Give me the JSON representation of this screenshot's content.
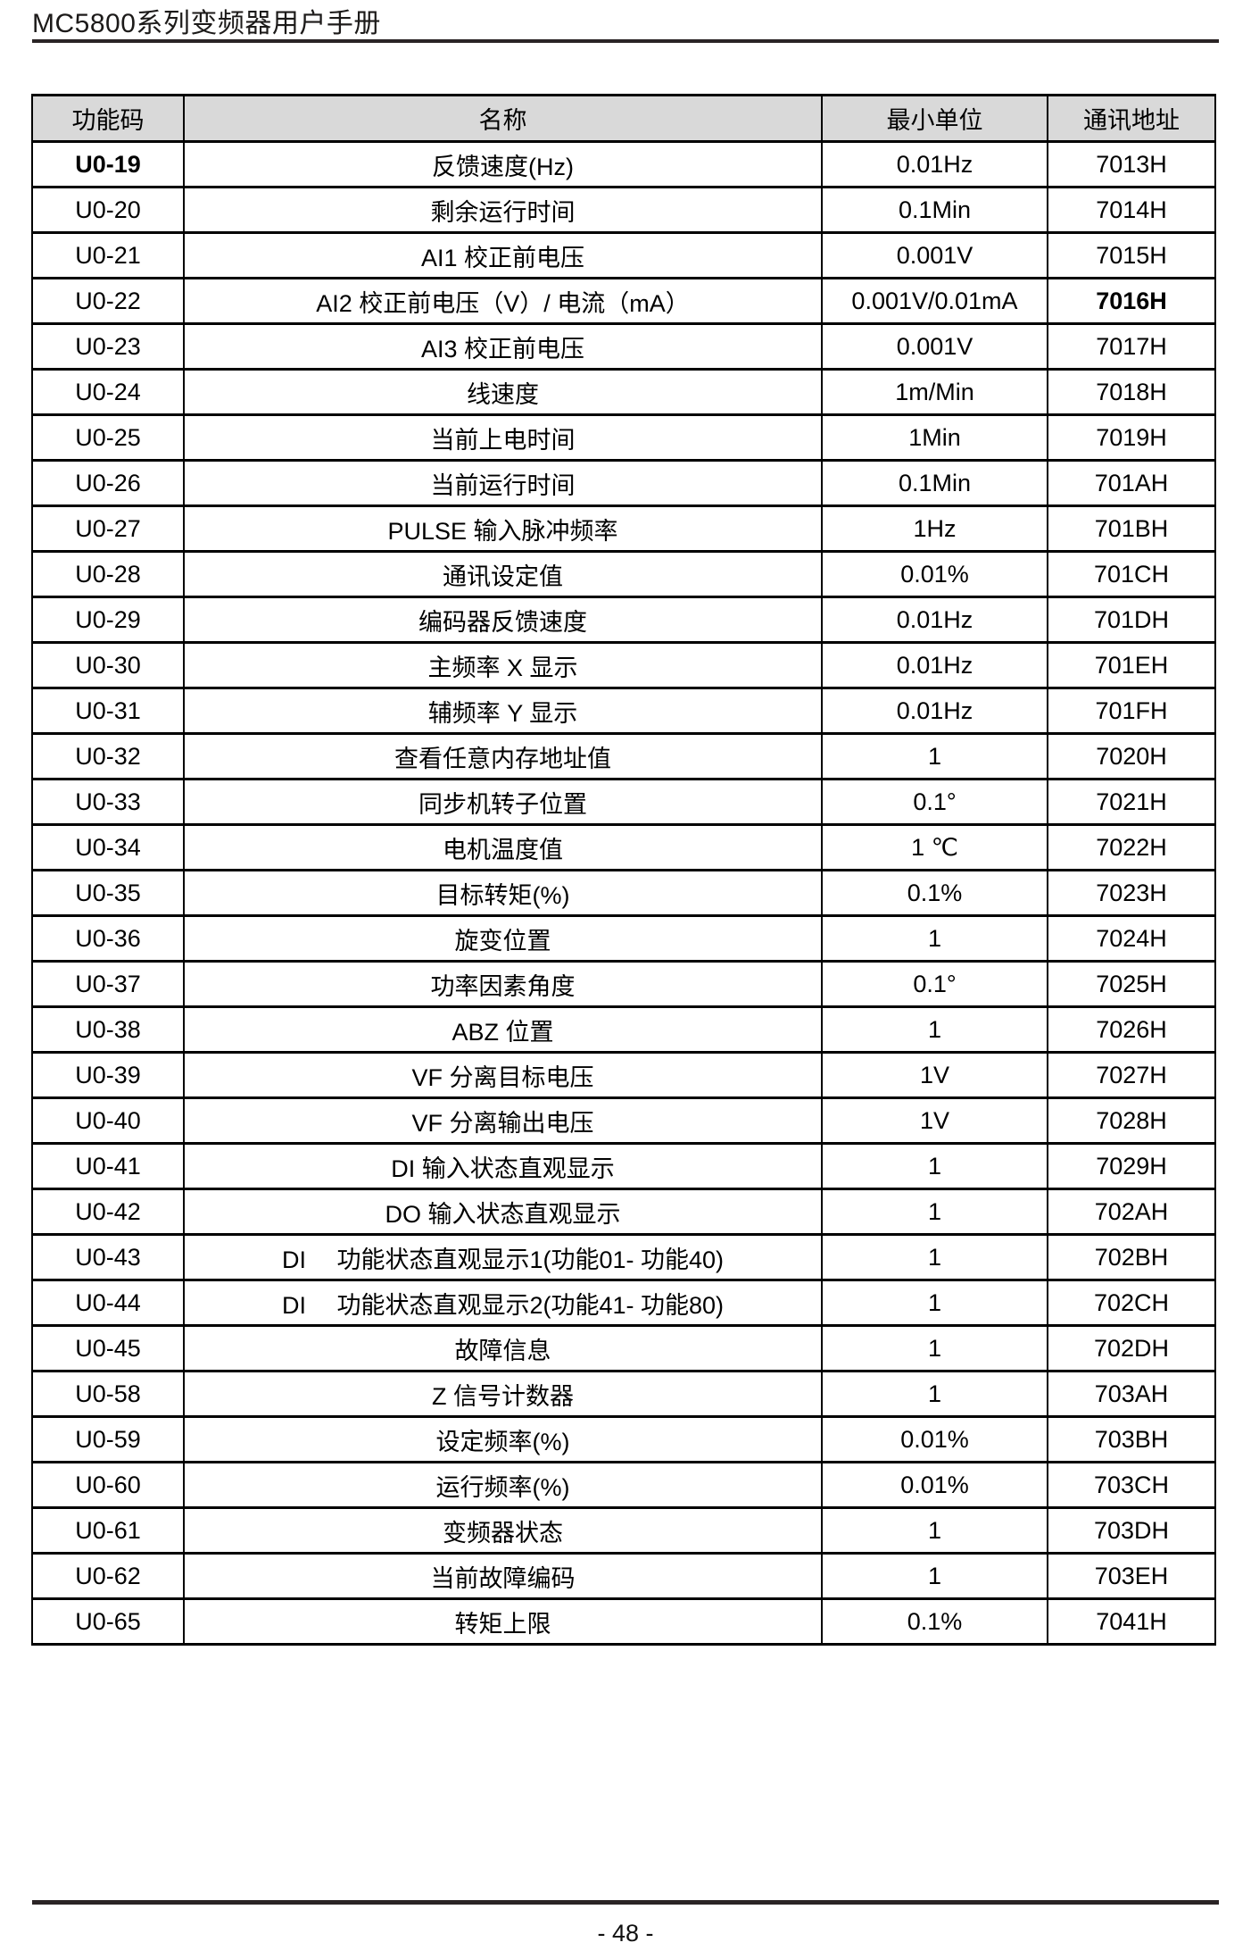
{
  "header": {
    "title": "MC5800系列变频器用户手册"
  },
  "colors": {
    "table_header_bg": "#d9d9d9",
    "rule_color": "#2a2425",
    "border_color": "#000000",
    "text_color": "#000000"
  },
  "table": {
    "columns": [
      "功能码",
      "名称",
      "最小单位",
      "通讯地址"
    ],
    "rows": [
      {
        "code": "U0-19",
        "name": "反馈速度(Hz)",
        "unit": "0.01Hz",
        "addr": "7013H",
        "code_bold": true
      },
      {
        "code": "U0-20",
        "name": "剩余运行时间",
        "unit": "0.1Min",
        "addr": "7014H"
      },
      {
        "code": "U0-21",
        "name": "AI1 校正前电压",
        "unit": "0.001V",
        "addr": "7015H"
      },
      {
        "code": "U0-22",
        "name": "AI2 校正前电压（V）/ 电流（mA）",
        "unit": "0.001V/0.01mA",
        "addr": "7016H",
        "addr_bold": true
      },
      {
        "code": "U0-23",
        "name": "AI3 校正前电压",
        "unit": "0.001V",
        "addr": "7017H"
      },
      {
        "code": "U0-24",
        "name": "线速度",
        "unit": "1m/Min",
        "addr": "7018H"
      },
      {
        "code": "U0-25",
        "name": "当前上电时间",
        "unit": "1Min",
        "addr": "7019H"
      },
      {
        "code": "U0-26",
        "name": "当前运行时间",
        "unit": "0.1Min",
        "addr": "701AH"
      },
      {
        "code": "U0-27",
        "name": "PULSE 输入脉冲频率",
        "unit": "1Hz",
        "addr": "701BH"
      },
      {
        "code": "U0-28",
        "name": "通讯设定值",
        "unit": "0.01%",
        "addr": "701CH"
      },
      {
        "code": "U0-29",
        "name": "编码器反馈速度",
        "unit": "0.01Hz",
        "addr": "701DH"
      },
      {
        "code": "U0-30",
        "name": "主频率 X 显示",
        "unit": "0.01Hz",
        "addr": "701EH"
      },
      {
        "code": "U0-31",
        "name": "辅频率 Y 显示",
        "unit": "0.01Hz",
        "addr": "701FH"
      },
      {
        "code": "U0-32",
        "name": "查看任意内存地址值",
        "unit": "1",
        "addr": "7020H"
      },
      {
        "code": "U0-33",
        "name": "同步机转子位置",
        "unit": "0.1°",
        "addr": "7021H"
      },
      {
        "code": "U0-34",
        "name": "电机温度值",
        "unit": "1 ℃",
        "addr": "7022H"
      },
      {
        "code": "U0-35",
        "name": "目标转矩(%)",
        "unit": "0.1%",
        "addr": "7023H"
      },
      {
        "code": "U0-36",
        "name": "旋变位置",
        "unit": "1",
        "addr": "7024H"
      },
      {
        "code": "U0-37",
        "name": "功率因素角度",
        "unit": "0.1°",
        "addr": "7025H"
      },
      {
        "code": "U0-38",
        "name": "ABZ  位置",
        "unit": "1",
        "addr": "7026H"
      },
      {
        "code": "U0-39",
        "name": "VF  分离目标电压",
        "unit": "1V",
        "addr": "7027H"
      },
      {
        "code": "U0-40",
        "name": "VF  分离输出电压",
        "unit": "1V",
        "addr": "7028H"
      },
      {
        "code": "U0-41",
        "name": "DI 输入状态直观显示",
        "unit": "1",
        "addr": "7029H"
      },
      {
        "code": "U0-42",
        "name": "DO  输入状态直观显示",
        "unit": "1",
        "addr": "702AH"
      },
      {
        "code": "U0-43",
        "name": "DI　 功能状态直观显示1(功能01- 功能40)",
        "unit": "1",
        "addr": "702BH"
      },
      {
        "code": "U0-44",
        "name": "DI　 功能状态直观显示2(功能41- 功能80)",
        "unit": "1",
        "addr": "702CH"
      },
      {
        "code": "U0-45",
        "name": "故障信息",
        "unit": "1",
        "addr": "702DH"
      },
      {
        "code": "U0-58",
        "name": "Z  信号计数器",
        "unit": "1",
        "addr": "703AH"
      },
      {
        "code": "U0-59",
        "name": "设定频率(%)",
        "unit": "0.01%",
        "addr": "703BH"
      },
      {
        "code": "U0-60",
        "name": "运行频率(%)",
        "unit": "0.01%",
        "addr": "703CH"
      },
      {
        "code": "U0-61",
        "name": "变频器状态",
        "unit": "1",
        "addr": "703DH"
      },
      {
        "code": "U0-62",
        "name": "当前故障编码",
        "unit": "1",
        "addr": "703EH"
      },
      {
        "code": "U0-65",
        "name": "转矩上限",
        "unit": "0.1%",
        "addr": "7041H"
      }
    ]
  },
  "footer": {
    "page_number": "- 48 -"
  }
}
